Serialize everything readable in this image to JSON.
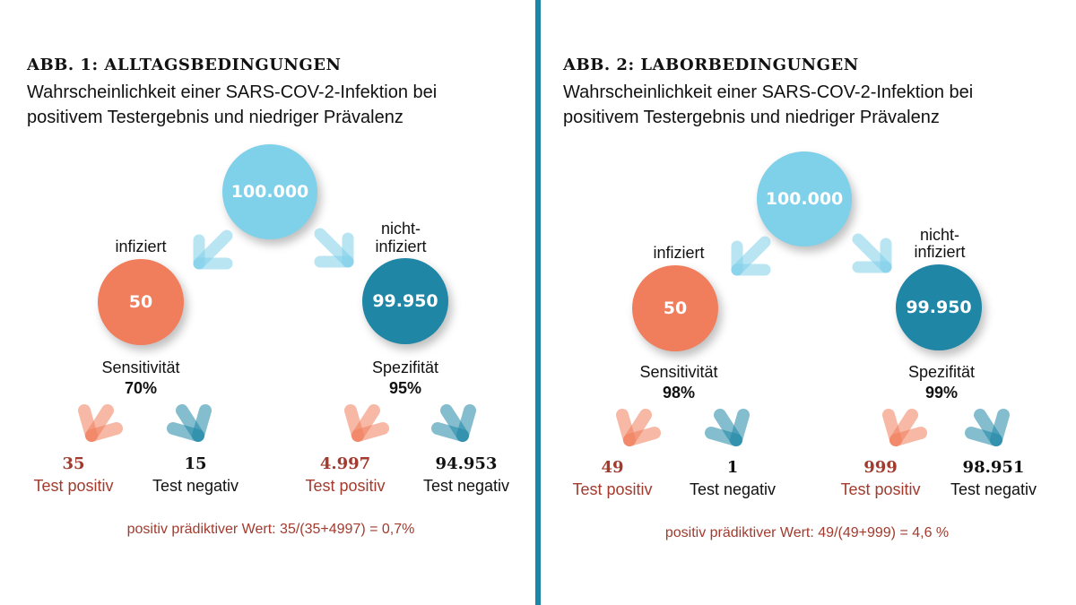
{
  "colors": {
    "light_blue": "#7fd0e9",
    "infected": "#f07d5b",
    "non_infected": "#1f86a6",
    "text_red": "#a23b2e",
    "divider": "#1d86a8"
  },
  "panels": [
    {
      "title": "ABB. 1: ALLTAGSBEDINGUNGEN",
      "subtitle_line1": "Wahrscheinlichkeit einer SARS-COV-2-Infektion bei",
      "subtitle_line2": "positivem Testergebnis und niedriger Prävalenz",
      "total": "100.000",
      "infected_label": "infiziert",
      "non_infected_label_1": "nicht-",
      "non_infected_label_2": "infiziert",
      "infected": "50",
      "non_infected": "99.950",
      "sensitivity_label": "Sensitivität",
      "sensitivity": "70%",
      "specificity_label": "Spezifität",
      "specificity": "95%",
      "true_positive": "35",
      "false_negative": "15",
      "false_positive": "4.997",
      "true_negative": "94.953",
      "test_positive_label": "Test positiv",
      "test_negative_label": "Test negativ",
      "formula": "positiv prädiktiver Wert: 35/(35+4997) = 0,7%"
    },
    {
      "title": "ABB. 2: LABORBEDINGUNGEN",
      "subtitle_line1": "Wahrscheinlichkeit einer SARS-COV-2-Infektion bei",
      "subtitle_line2": "positivem Testergebnis und niedriger Prävalenz",
      "total": "100.000",
      "infected_label": "infiziert",
      "non_infected_label_1": "nicht-",
      "non_infected_label_2": "infiziert",
      "infected": "50",
      "non_infected": "99.950",
      "sensitivity_label": "Sensitivität",
      "sensitivity": "98%",
      "specificity_label": "Spezifität",
      "specificity": "99%",
      "true_positive": "49",
      "false_negative": "1",
      "false_positive": "999",
      "true_negative": "98.951",
      "test_positive_label": "Test positiv",
      "test_negative_label": "Test negativ",
      "formula": "positiv prädiktiver Wert: 49/(49+999) = 4,6 %"
    }
  ]
}
